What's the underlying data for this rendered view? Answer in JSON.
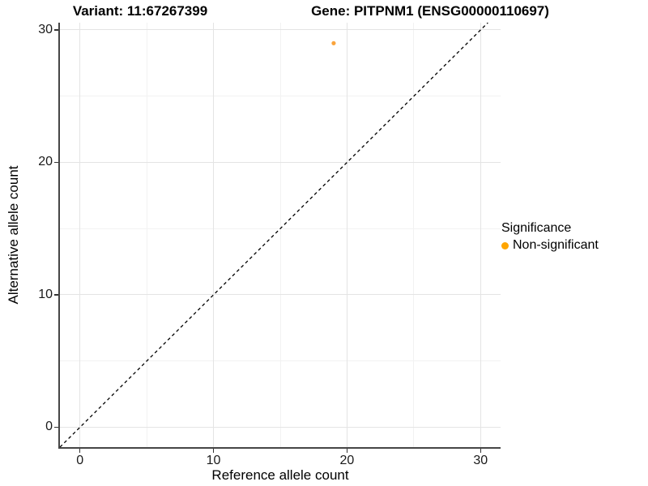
{
  "titles": {
    "variant": "Variant: 11:67267399",
    "gene": "Gene: PITPNM1 (ENSG00000110697)"
  },
  "chart_data": {
    "type": "scatter",
    "title": "Variant: 11:67267399 | Gene: PITPNM1 (ENSG00000110697)",
    "xlabel": "Reference allele count",
    "ylabel": "Alternative allele count",
    "xlim": [
      -1.5,
      31.5
    ],
    "ylim": [
      -1.5,
      30.55
    ],
    "x_ticks": [
      0,
      10,
      20,
      30
    ],
    "y_ticks": [
      0,
      10,
      20,
      30
    ],
    "minor_grid": true,
    "grid": true,
    "points": [
      {
        "x": 19,
        "y": 29,
        "series": "Non-significant"
      }
    ],
    "reference_line": {
      "kind": "identity y=x",
      "style": "dashed",
      "color": "#000000"
    },
    "legend": {
      "position": "right",
      "title": "Significance",
      "entries": [
        {
          "label": "Non-significant",
          "color": "#FFA500"
        }
      ]
    }
  },
  "colors": {
    "background": "#FFFFFF",
    "point": "#FAA43C",
    "legend_dot": "#FFA500",
    "grid_major": "#E4E4E4",
    "grid_minor": "#F2F2F2",
    "axis_line": "#464646",
    "tick": "#333333",
    "tick_label": "#1A1A1A",
    "text": "#000000"
  }
}
